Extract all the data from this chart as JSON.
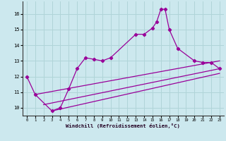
{
  "bg_color": "#cce8ee",
  "grid_color": "#b0d4d8",
  "line_color": "#990099",
  "xlim": [
    -0.5,
    23.5
  ],
  "ylim": [
    9.5,
    16.8
  ],
  "xticks": [
    0,
    1,
    2,
    3,
    4,
    5,
    6,
    7,
    8,
    9,
    10,
    11,
    12,
    13,
    14,
    15,
    16,
    17,
    18,
    19,
    20,
    21,
    22,
    23
  ],
  "yticks": [
    10,
    11,
    12,
    13,
    14,
    15,
    16
  ],
  "xlabel": "Windchill (Refroidissement éolien,°C)",
  "line1_x": [
    0,
    1,
    3,
    4,
    5,
    6,
    7,
    8,
    9,
    10,
    13,
    14,
    15,
    15.5,
    16,
    16.5,
    17,
    18,
    20,
    21,
    22,
    23
  ],
  "line1_y": [
    12.0,
    10.85,
    9.8,
    10.0,
    11.2,
    12.5,
    13.2,
    13.1,
    13.0,
    13.2,
    14.7,
    14.7,
    15.1,
    15.5,
    16.3,
    16.3,
    15.0,
    13.8,
    13.0,
    12.9,
    12.9,
    12.5
  ],
  "line2_x": [
    1,
    23
  ],
  "line2_y": [
    10.85,
    13.0
  ],
  "line3_x": [
    2,
    23
  ],
  "line3_y": [
    10.2,
    12.5
  ],
  "line4_x": [
    3,
    23
  ],
  "line4_y": [
    9.8,
    12.2
  ]
}
